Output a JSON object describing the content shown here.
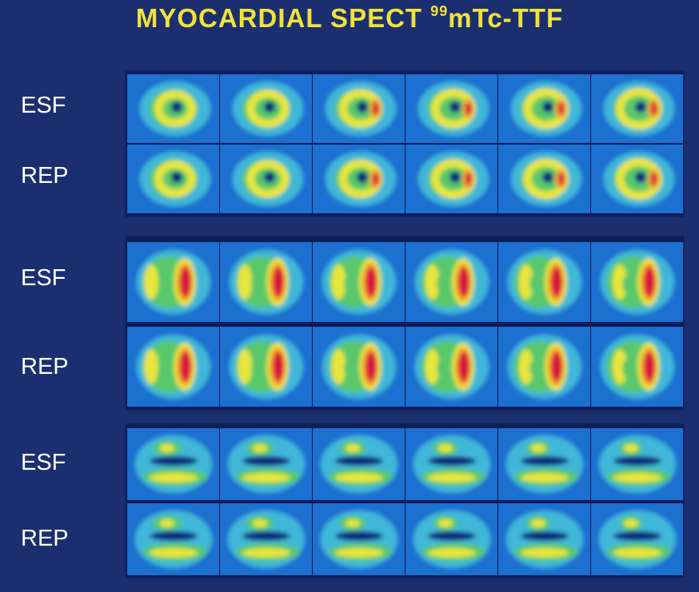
{
  "title": {
    "main": "MYOCARDIAL SPECT ",
    "sup": "99",
    "tail": "mTc-TTF"
  },
  "rows": [
    {
      "label": "ESF",
      "view": "short",
      "block": 0
    },
    {
      "label": "REP",
      "view": "short",
      "block": 0
    },
    {
      "label": "ESF",
      "view": "vertical",
      "block": 1
    },
    {
      "label": "REP",
      "view": "vertical",
      "block": 1
    },
    {
      "label": "ESF",
      "view": "horizontal",
      "block": 2
    },
    {
      "label": "REP",
      "view": "horizontal",
      "block": 2
    }
  ],
  "colors": {
    "background": "#1b2f70",
    "title": "#f2e23a",
    "label": "#ffffff",
    "scale": [
      "#0d2a7a",
      "#1f6fd0",
      "#3fb7d8",
      "#58c86a",
      "#e8e63a",
      "#f4a12a",
      "#d8143c"
    ]
  }
}
